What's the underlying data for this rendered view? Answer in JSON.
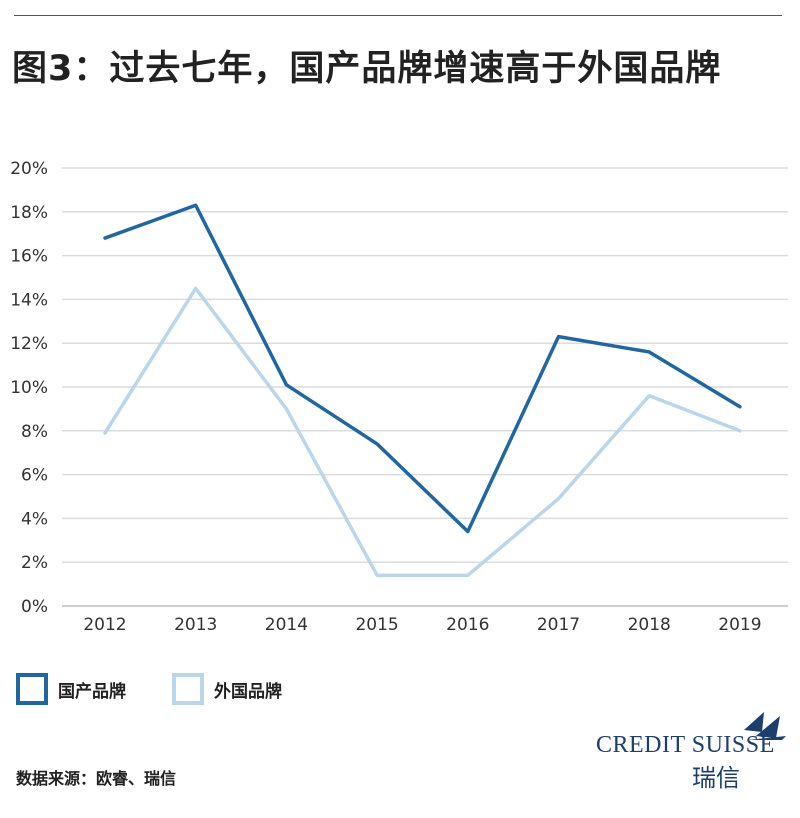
{
  "title": "图3：过去七年，国产品牌增速高于外国品牌",
  "source": "数据来源：欧睿、瑞信",
  "logo": {
    "name": "CREDIT SUISSE",
    "name_cn": "瑞信"
  },
  "colors": {
    "domestic": "#2066a0",
    "foreign": "#b9d6ea",
    "grid": "#dcdcdc"
  },
  "chart_data": {
    "type": "line",
    "categories": [
      "2012",
      "2013",
      "2014",
      "2015",
      "2016",
      "2017",
      "2018",
      "2019"
    ],
    "ylim": [
      0,
      20
    ],
    "yticks": [
      "0%",
      "2%",
      "4%",
      "6%",
      "8%",
      "10%",
      "12%",
      "14%",
      "16%",
      "18%",
      "20%"
    ],
    "grid": true,
    "legend_position": "bottom-left",
    "series": [
      {
        "name": "国产品牌",
        "color": "#2066a0",
        "values": [
          16.8,
          18.3,
          10.1,
          7.4,
          3.4,
          12.3,
          11.6,
          9.1
        ]
      },
      {
        "name": "外国品牌",
        "color": "#b9d6ea",
        "values": [
          7.9,
          14.5,
          9.0,
          1.4,
          1.4,
          4.9,
          9.6,
          8.0
        ]
      }
    ]
  }
}
